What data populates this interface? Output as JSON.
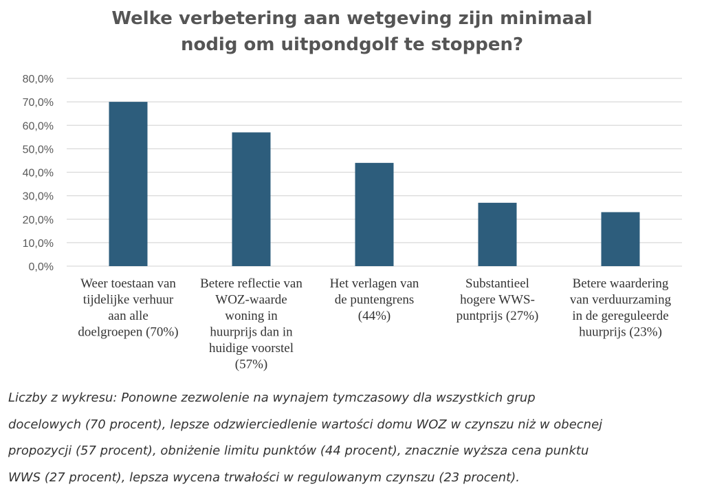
{
  "colors": {
    "bar": "#2d5d7c",
    "grid": "#d9d9d9",
    "axis_text": "#595959",
    "category_text": "#333333"
  },
  "chart_data": {
    "type": "bar",
    "title_lines": [
      "Welke verbetering aan wetgeving zijn minimaal",
      "nodig om uitpondgolf te stoppen?"
    ],
    "categories": [
      [
        "Weer toestaan van",
        "tijdelijke verhuur",
        "aan alle",
        "doelgroepen (70%)"
      ],
      [
        "Betere reflectie van",
        "WOZ-waarde",
        "woning in",
        "huurprijs dan in",
        "huidige voorstel",
        "(57%)"
      ],
      [
        "Het verlagen van",
        "de puntengrens",
        "(44%)"
      ],
      [
        "Substantieel",
        "hogere WWS-",
        "puntprijs (27%)"
      ],
      [
        "Betere waardering",
        "van verduurzaming",
        "in de gereguleerde",
        "huurprijs (23%)"
      ]
    ],
    "values": [
      70,
      57,
      44,
      27,
      23
    ],
    "y_ticks": [
      "0,0%",
      "10,0%",
      "20,0%",
      "30,0%",
      "40,0%",
      "50,0%",
      "60,0%",
      "70,0%",
      "80,0%"
    ],
    "ylim": [
      0,
      80
    ],
    "grid": true
  },
  "caption": {
    "lines": [
      "Liczby z wykresu: Ponowne zezwolenie na wynajem tymczasowy dla wszystkich grup",
      "docelowych (70 procent), lepsze odzwierciedlenie wartości domu WOZ w czynszu niż w obecnej",
      "propozycji (57 procent), obniżenie limitu punktów (44 procent), znacznie wyższa cena punktu",
      "WWS (27 procent), lepsza wycena trwałości w regulowanym czynszu (23 procent)."
    ]
  }
}
